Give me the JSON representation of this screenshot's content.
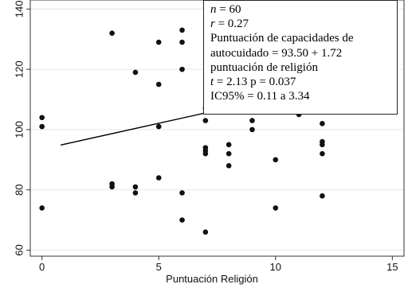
{
  "chart_data": {
    "type": "scatter",
    "xlabel": "Puntuación Religión",
    "ylabel": "",
    "xlim": [
      -0.5,
      15.5
    ],
    "ylim": [
      58,
      143
    ],
    "xticks": [
      0,
      5,
      10,
      15
    ],
    "yticks": [
      60,
      80,
      100,
      120,
      140
    ],
    "grid": "horizontal",
    "series": [
      {
        "points": [
          [
            0,
            104
          ],
          [
            0,
            101
          ],
          [
            0,
            74
          ],
          [
            3,
            132
          ],
          [
            3,
            82
          ],
          [
            3,
            81
          ],
          [
            4,
            119
          ],
          [
            4,
            81
          ],
          [
            4,
            79
          ],
          [
            5,
            129
          ],
          [
            5,
            115
          ],
          [
            5,
            101
          ],
          [
            5,
            84
          ],
          [
            6,
            133
          ],
          [
            6,
            129
          ],
          [
            6,
            120
          ],
          [
            6,
            79
          ],
          [
            6,
            70
          ],
          [
            7,
            107
          ],
          [
            7,
            103
          ],
          [
            7,
            94
          ],
          [
            7,
            93
          ],
          [
            7,
            92
          ],
          [
            7,
            66
          ],
          [
            8,
            95
          ],
          [
            8,
            92
          ],
          [
            8,
            88
          ],
          [
            9,
            103
          ],
          [
            9,
            100
          ],
          [
            10,
            90
          ],
          [
            10,
            74
          ],
          [
            11,
            105
          ],
          [
            12,
            107
          ],
          [
            12,
            102
          ],
          [
            12,
            96
          ],
          [
            12,
            95
          ],
          [
            12,
            92
          ],
          [
            12,
            78
          ]
        ]
      }
    ],
    "fit_line": {
      "intercept": 93.5,
      "slope": 1.72,
      "x_range": [
        0.8,
        7.1
      ]
    },
    "annotation": [
      "n = 60",
      "r = 0.27",
      "Puntuación de capacidades de",
      "autocuidado = 93.50 + 1.72",
      "puntuación de religión",
      "t = 2.13 p = 0.037",
      "IC95% = 0.11 a 3.34"
    ]
  }
}
